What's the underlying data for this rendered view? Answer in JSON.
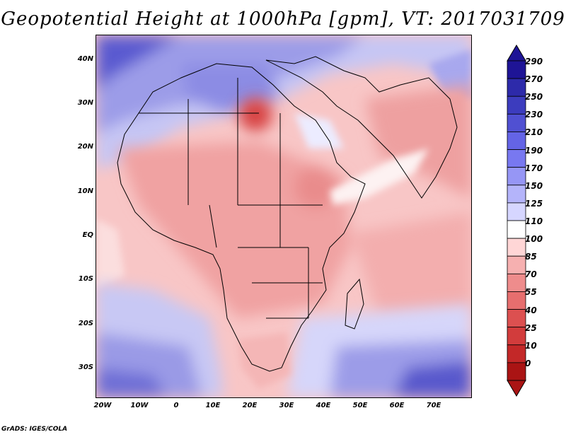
{
  "title": "Geopotential Height at 1000hPa [gpm], VT: 2017031709",
  "credit": "GrADS: IGES/COLA",
  "lat_labels": [
    "40N",
    "30N",
    "20N",
    "10N",
    "EQ",
    "10S",
    "20S",
    "30S"
  ],
  "lon_labels": [
    "20W",
    "10W",
    "0",
    "10E",
    "20E",
    "30E",
    "40E",
    "50E",
    "60E",
    "70E"
  ],
  "colorbar": {
    "labels": [
      "290",
      "270",
      "250",
      "230",
      "210",
      "190",
      "170",
      "150",
      "125",
      "110",
      "100",
      "85",
      "70",
      "55",
      "40",
      "25",
      "10",
      "0"
    ],
    "colors": [
      "#1e1496",
      "#2d2aaa",
      "#3c3cbe",
      "#5050d2",
      "#6464e6",
      "#7878f0",
      "#9696f5",
      "#b4b4fa",
      "#d6d6ff",
      "#ffffff",
      "#ffd6d6",
      "#f6b0b0",
      "#ee8c8c",
      "#e66e6e",
      "#dc5050",
      "#d23c3c",
      "#c32828",
      "#aa1414"
    ]
  },
  "regions": {
    "north": "#7070d8",
    "south": "#7e7ee0",
    "sahara_high": "#d83a3a"
  }
}
